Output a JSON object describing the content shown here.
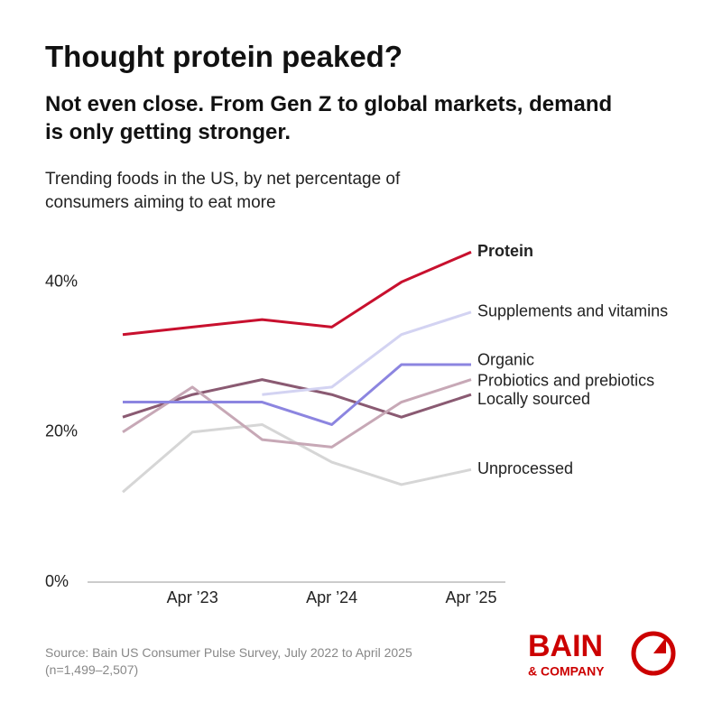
{
  "chart_data": {
    "type": "line",
    "title": "Thought protein peaked?",
    "subtitle": "Not even close. From Gen Z to global markets, demand is only getting stronger.",
    "description": "Trending foods in the US, by net percentage of consumers aiming to eat more",
    "source": "Source: Bain US Consumer Pulse Survey, July 2022 to April 2025 (n=1,499–2,507)",
    "logo": {
      "name": "BAIN",
      "sub": "& COMPANY"
    },
    "categories": [
      null,
      "Apr ’23",
      null,
      "Apr ’24",
      null,
      "Apr ’25"
    ],
    "ylim": [
      0,
      45
    ],
    "yticks": [
      {
        "value": 0,
        "label": "0%"
      },
      {
        "value": 20,
        "label": "20%"
      },
      {
        "value": 40,
        "label": "40%"
      }
    ],
    "series": [
      {
        "name": "Protein",
        "color": "#c8102e",
        "values": [
          33,
          34,
          35,
          34,
          40,
          44
        ]
      },
      {
        "name": "Supplements and vitamins",
        "color": "#d3d3f2",
        "values": [
          null,
          null,
          25,
          26,
          33,
          36
        ]
      },
      {
        "name": "Organic",
        "color": "#8c85e0",
        "values": [
          24,
          24,
          24,
          21,
          29,
          29
        ]
      },
      {
        "name": "Probiotics and prebiotics",
        "color": "#c7a8b6",
        "values": [
          20,
          26,
          19,
          18,
          24,
          27
        ]
      },
      {
        "name": "Locally sourced",
        "color": "#8a5a72",
        "values": [
          22,
          25,
          27,
          25,
          22,
          25
        ]
      },
      {
        "name": "Unprocessed",
        "color": "#d6d6d6",
        "values": [
          12,
          20,
          21,
          16,
          13,
          15
        ]
      }
    ]
  }
}
